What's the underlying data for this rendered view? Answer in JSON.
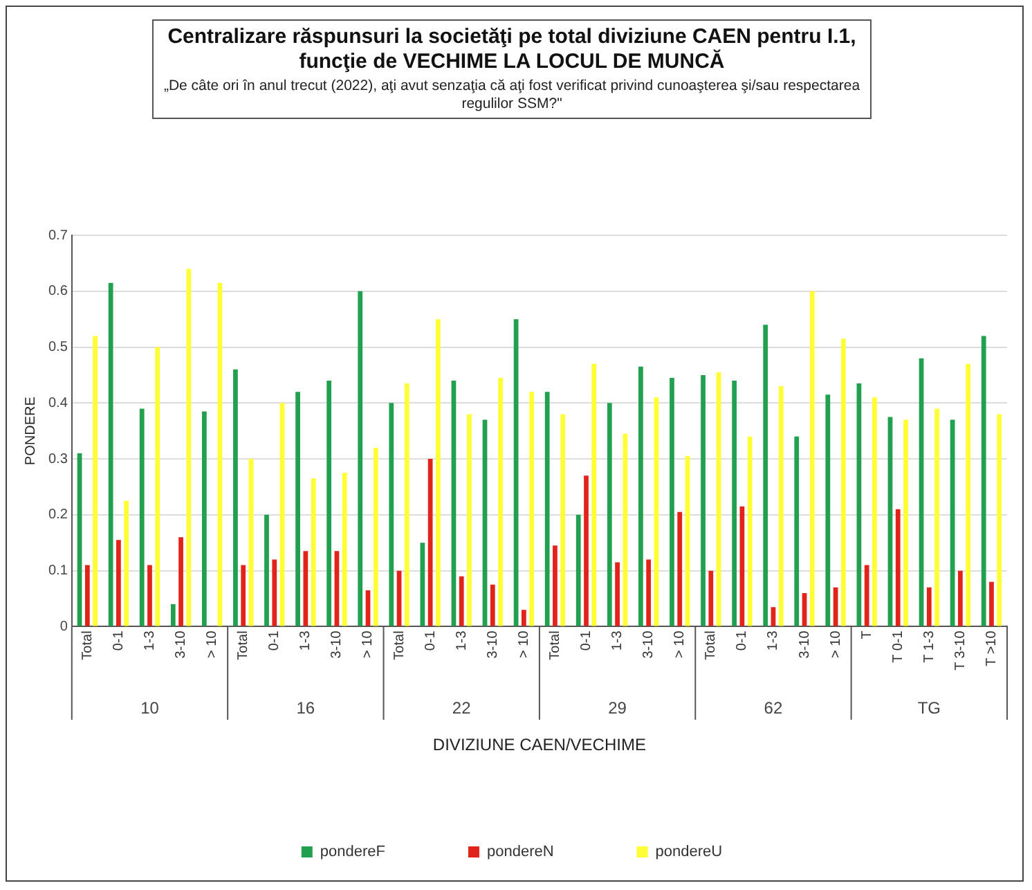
{
  "chart_data": {
    "type": "bar",
    "title": "Centralizare răspunsuri la societăţi pe total diviziune CAEN pentru I.1, funcţie de VECHIME LA LOCUL DE MUNCĂ",
    "subtitle": "„De câte ori în anul trecut (2022), aţi avut senzaţia că aţi fost verificat privind cunoaşterea şi/sau respectarea  regulilor SSM?\"",
    "xlabel": "DIVIZIUNE CAEN/VECHIME",
    "ylabel": "PONDERE",
    "categories": [
      "Total",
      "0-1",
      "1-3",
      "3-10",
      "> 10",
      "Total",
      "0-1",
      "1-3",
      "3-10",
      "> 10",
      "Total",
      "0-1",
      "1-3",
      "3-10",
      "> 10",
      "Total",
      "0-1",
      "1-3",
      "3-10",
      "> 10",
      "Total",
      "0-1",
      "1-3",
      "3-10",
      "> 10",
      "T",
      "T 0-1",
      "T 1-3",
      "T 3-10",
      "T >10"
    ],
    "annotations": [
      "10",
      "16",
      "22",
      "29",
      "62",
      "TG"
    ],
    "series": [
      {
        "name": "pondereF",
        "color": "#21a04f",
        "values": [
          0.31,
          0.615,
          0.39,
          0.04,
          0.385,
          0.46,
          0.2,
          0.42,
          0.44,
          0.6,
          0.4,
          0.15,
          0.44,
          0.37,
          0.55,
          0.42,
          0.2,
          0.4,
          0.465,
          0.445,
          0.45,
          0.44,
          0.54,
          0.34,
          0.415,
          0.435,
          0.375,
          0.48,
          0.37,
          0.52
        ]
      },
      {
        "name": "pondereN",
        "color": "#e2231a",
        "values": [
          0.11,
          0.155,
          0.11,
          0.16,
          0,
          0.11,
          0.12,
          0.135,
          0.135,
          0.065,
          0.1,
          0.3,
          0.09,
          0.075,
          0.03,
          0.145,
          0.27,
          0.115,
          0.12,
          0.205,
          0.1,
          0.215,
          0.035,
          0.06,
          0.07,
          0.11,
          0.21,
          0.07,
          0.1,
          0.08
        ]
      },
      {
        "name": "pondereU",
        "color": "#ffff33",
        "values": [
          0.52,
          0.225,
          0.5,
          0.64,
          0.615,
          0.3,
          0.4,
          0.265,
          0.275,
          0.32,
          0.435,
          0.55,
          0.38,
          0.445,
          0.42,
          0.38,
          0.47,
          0.345,
          0.41,
          0.305,
          0.455,
          0.34,
          0.43,
          0.6,
          0.515,
          0.41,
          0.37,
          0.39,
          0.47,
          0.38
        ]
      }
    ],
    "ylim": [
      0,
      0.7
    ],
    "yticks": [
      0,
      0.1,
      0.2,
      0.3,
      0.4,
      0.5,
      0.6,
      0.7
    ],
    "grid": "y",
    "legend": "bottom"
  }
}
